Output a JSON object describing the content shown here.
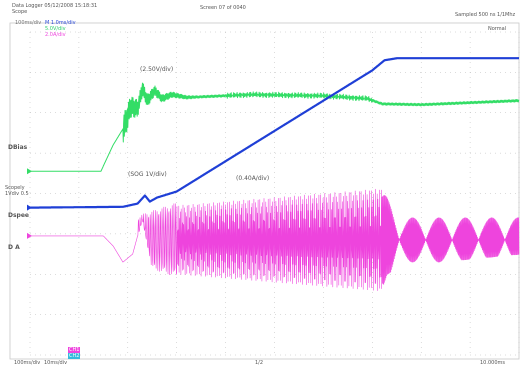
{
  "header": {
    "left_line1": "Data Logger  05/12/2008  15:18:31",
    "left_line2": "Scope",
    "center": "Screen 07 of 0040",
    "right": "Sampled 500 ns  1/1Mhz",
    "small_a": "100ms/div",
    "small_b": "M 1.0ms/div",
    "legend_cyan": "5.0V/div",
    "legend_magenta": "2.0A/div",
    "badge": "Normal"
  },
  "footer": {
    "left1": "100ms/div",
    "left2": "10ms/div",
    "mid": "1/2",
    "right": "10.000ms",
    "chips": [
      "CH1",
      "CH2"
    ]
  },
  "colors": {
    "green": "#33dd66",
    "blue": "#1f3fd6",
    "magenta": "#ee44dd",
    "grid": "#b8b8b8"
  },
  "chart_data": {
    "type": "line",
    "annotations": [
      {
        "text": "(2.50V/div)",
        "color": "#2dd06a"
      },
      {
        "text": "(SOG 1V/div)",
        "color": "#1f3fd6"
      },
      {
        "text": "(0.40A/div)",
        "color": "#ee44dd"
      }
    ],
    "channel_labels": [
      {
        "text": "DBias",
        "color": "#2dd06a"
      },
      {
        "text": "Dspee",
        "color": "#1f3fd6"
      },
      {
        "text": "D A",
        "color": "#ee44dd"
      }
    ],
    "mid_label": [
      "Scopely",
      "1Vdiv 0.5"
    ],
    "x_range": [
      0,
      10
    ],
    "y_range": [
      -4,
      4
    ],
    "grid": true,
    "series": [
      {
        "color": "#33dd66",
        "waveform": "damped_step",
        "points": [
          [
            0,
            0.55
          ],
          [
            1.45,
            0.55
          ],
          [
            1.7,
            1.2
          ],
          [
            1.9,
            1.6
          ],
          [
            2.0,
            1.9
          ],
          [
            2.05,
            2.15
          ],
          [
            2.2,
            2.1
          ],
          [
            2.3,
            2.6
          ],
          [
            2.4,
            2.3
          ],
          [
            2.55,
            2.55
          ],
          [
            2.7,
            2.35
          ],
          [
            2.9,
            2.45
          ],
          [
            3.2,
            2.38
          ],
          [
            3.6,
            2.4
          ],
          [
            4.5,
            2.45
          ],
          [
            6.0,
            2.42
          ],
          [
            6.9,
            2.35
          ],
          [
            7.2,
            2.22
          ],
          [
            8.0,
            2.2
          ],
          [
            9.0,
            2.25
          ],
          [
            10.0,
            2.3
          ]
        ]
      },
      {
        "color": "#1f3fd6",
        "waveform": "ramp",
        "points": [
          [
            0,
            -0.35
          ],
          [
            1.9,
            -0.33
          ],
          [
            2.2,
            -0.25
          ],
          [
            2.35,
            -0.05
          ],
          [
            2.45,
            -0.2
          ],
          [
            2.6,
            -0.1
          ],
          [
            3.0,
            0.05
          ],
          [
            4.0,
            0.8
          ],
          [
            5.0,
            1.55
          ],
          [
            6.0,
            2.3
          ],
          [
            7.0,
            3.05
          ],
          [
            7.25,
            3.3
          ],
          [
            7.5,
            3.35
          ],
          [
            10.0,
            3.35
          ]
        ]
      },
      {
        "color": "#ee44dd",
        "waveform": "oscillation",
        "points": [
          [
            0,
            -1.05
          ],
          [
            1.5,
            -1.05
          ],
          [
            1.7,
            -1.3
          ],
          [
            1.9,
            -1.7
          ],
          [
            2.1,
            -1.5
          ],
          [
            2.3,
            -0.6
          ],
          [
            2.5,
            -1.9
          ],
          [
            3.0,
            -2.2
          ],
          [
            3.5,
            -2.4
          ],
          [
            5.0,
            -2.6
          ],
          [
            6.5,
            -2.9
          ],
          [
            7.1,
            -2.8
          ],
          [
            7.3,
            -2.0
          ],
          [
            7.6,
            -1.8
          ],
          [
            10.0,
            -1.5
          ]
        ]
      }
    ]
  }
}
